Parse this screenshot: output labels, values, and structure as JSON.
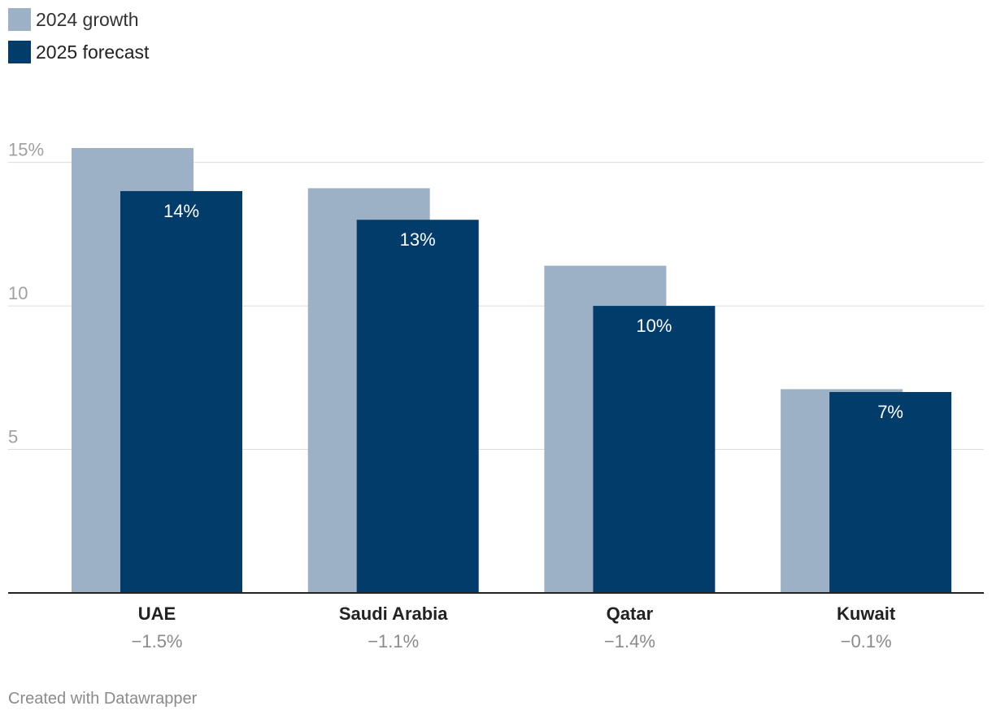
{
  "legend": {
    "items": [
      {
        "label": "2024 growth",
        "color": "#9db1c6"
      },
      {
        "label": "2025 forecast",
        "color": "#023c6b"
      }
    ]
  },
  "footer": {
    "credit": "Created with Datawrapper"
  },
  "chart_data": {
    "type": "bar",
    "title": "",
    "xlabel": "",
    "ylabel": "",
    "ylim": [
      0,
      15.5
    ],
    "yticks": [
      {
        "value": 5,
        "label": "5"
      },
      {
        "value": 10,
        "label": "10"
      },
      {
        "value": 15,
        "label": "15%"
      }
    ],
    "categories": [
      "UAE",
      "Saudi Arabia",
      "Qatar",
      "Kuwait"
    ],
    "category_notes": [
      "−1.5%",
      "−1.1%",
      "−1.4%",
      "−0.1%"
    ],
    "series": [
      {
        "name": "2024 growth",
        "color": "#9db1c6",
        "values": [
          15.5,
          14.1,
          11.4,
          7.1
        ],
        "labels": [
          "",
          "",
          "",
          ""
        ]
      },
      {
        "name": "2025 forecast",
        "color": "#023c6b",
        "values": [
          14,
          13,
          10,
          7
        ],
        "labels": [
          "14%",
          "13%",
          "10%",
          "7%"
        ]
      }
    ],
    "grid": true,
    "legend_position": "top-left"
  }
}
